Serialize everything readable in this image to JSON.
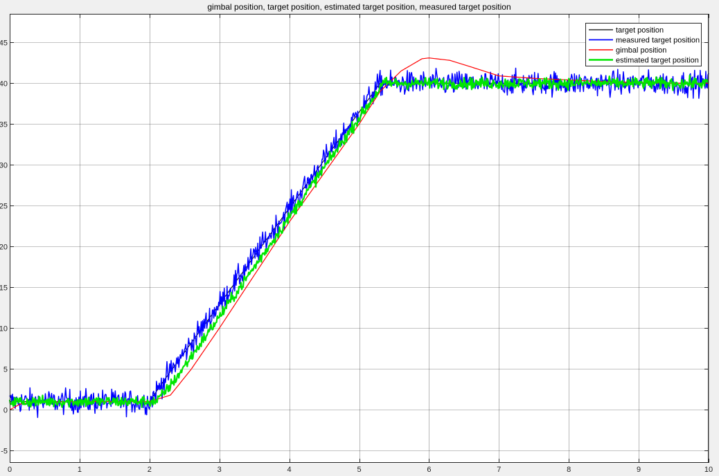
{
  "chart_data": {
    "type": "line",
    "title": "gimbal position, target position, estimated target position, measured target position",
    "xlabel": "",
    "ylabel": "",
    "xlim": [
      0,
      10
    ],
    "ylim": [
      -6.5,
      48.5
    ],
    "x_ticks": [
      0,
      1,
      2,
      3,
      4,
      5,
      6,
      7,
      8,
      9,
      10
    ],
    "y_ticks": [
      -5,
      0,
      5,
      10,
      15,
      20,
      25,
      30,
      35,
      40,
      45
    ],
    "grid": true,
    "legend_position": "top-right",
    "series": [
      {
        "name": "target position",
        "color": "#000000",
        "line_width": 1,
        "noise": 0,
        "x": [
          0,
          2.0,
          2.2,
          5.3,
          10.0
        ],
        "y": [
          1.0,
          1.0,
          3.5,
          40.0,
          40.0
        ]
      },
      {
        "name": "measured target position",
        "color": "#0000ff",
        "line_width": 1.5,
        "noise": 0.75,
        "x": [
          0,
          2.0,
          2.2,
          5.3,
          10.0
        ],
        "y": [
          1.0,
          1.0,
          3.5,
          40.0,
          40.0
        ]
      },
      {
        "name": "gimbal position",
        "color": "#ff0000",
        "line_width": 1.2,
        "noise": 0,
        "x": [
          0,
          0.15,
          0.3,
          1.0,
          2.0,
          2.3,
          2.6,
          3.0,
          3.5,
          4.0,
          4.5,
          5.0,
          5.3,
          5.6,
          5.9,
          6.0,
          6.3,
          6.6,
          7.0,
          7.5,
          8.0,
          8.5,
          9.0,
          9.5,
          10.0
        ],
        "y": [
          0.0,
          0.7,
          0.9,
          1.0,
          1.0,
          1.8,
          5.0,
          10.0,
          16.5,
          23.0,
          29.0,
          35.0,
          39.0,
          41.5,
          43.0,
          43.1,
          42.8,
          42.0,
          40.9,
          40.6,
          40.4,
          40.2,
          40.1,
          40.0,
          40.0
        ]
      },
      {
        "name": "estimated target position",
        "color": "#00e600",
        "line_width": 2.2,
        "noise": 0.35,
        "x": [
          0,
          2.1,
          2.35,
          5.35,
          10.0
        ],
        "y": [
          1.0,
          1.0,
          3.5,
          40.0,
          40.0
        ]
      }
    ]
  }
}
